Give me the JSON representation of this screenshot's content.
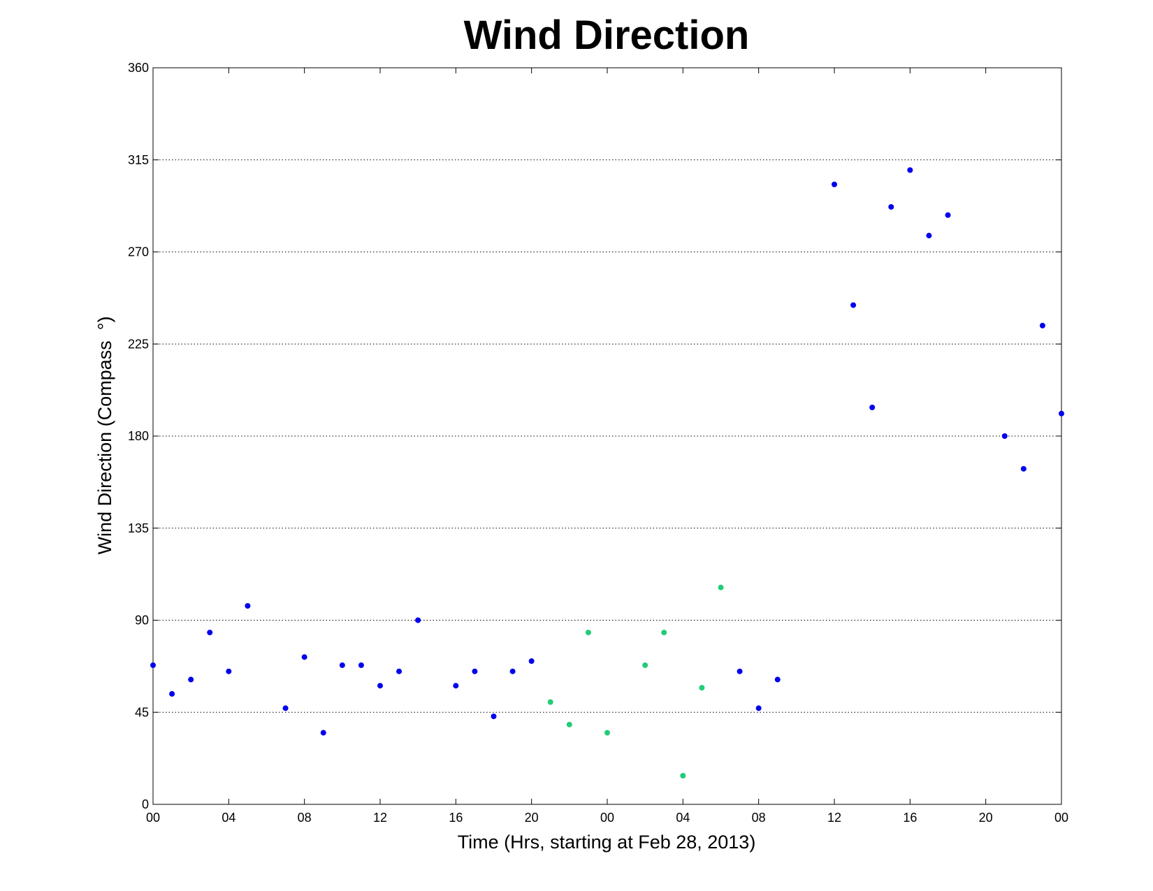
{
  "chart_data": {
    "type": "scatter",
    "title": "Wind Direction",
    "xlabel": "Time (Hrs, starting at Feb 28, 2013)",
    "ylabel": "Wind Direction (Compass  °)",
    "x_unit": "hours",
    "xlim": [
      0,
      48
    ],
    "ylim": [
      0,
      360
    ],
    "y_ticks": [
      0,
      45,
      90,
      135,
      180,
      225,
      270,
      315,
      360
    ],
    "y_tick_labels": [
      "0",
      "45",
      "90",
      "135",
      "180",
      "225",
      "270",
      "315",
      "360"
    ],
    "x_ticks": [
      0,
      4,
      8,
      12,
      16,
      20,
      24,
      28,
      32,
      36,
      40,
      44,
      48
    ],
    "x_tick_labels": [
      "00",
      "04",
      "08",
      "12",
      "16",
      "20",
      "00",
      "04",
      "08",
      "12",
      "16",
      "20",
      "00"
    ],
    "grid": "horizontal dotted",
    "series": [
      {
        "color": "#0000ee",
        "points": [
          {
            "x": 0,
            "y": 68
          },
          {
            "x": 1,
            "y": 54
          },
          {
            "x": 2,
            "y": 61
          },
          {
            "x": 3,
            "y": 84
          },
          {
            "x": 4,
            "y": 65
          },
          {
            "x": 5,
            "y": 97
          },
          {
            "x": 7,
            "y": 47
          },
          {
            "x": 8,
            "y": 72
          },
          {
            "x": 9,
            "y": 35
          },
          {
            "x": 10,
            "y": 68
          },
          {
            "x": 11,
            "y": 68
          },
          {
            "x": 12,
            "y": 58
          },
          {
            "x": 13,
            "y": 65
          },
          {
            "x": 14,
            "y": 90
          },
          {
            "x": 16,
            "y": 58
          },
          {
            "x": 17,
            "y": 65
          },
          {
            "x": 18,
            "y": 43
          },
          {
            "x": 19,
            "y": 65
          },
          {
            "x": 20,
            "y": 70
          },
          {
            "x": 31,
            "y": 65
          },
          {
            "x": 32,
            "y": 47
          },
          {
            "x": 33,
            "y": 61
          },
          {
            "x": 36,
            "y": 303
          },
          {
            "x": 37,
            "y": 244
          },
          {
            "x": 38,
            "y": 194
          },
          {
            "x": 39,
            "y": 292
          },
          {
            "x": 40,
            "y": 310
          },
          {
            "x": 41,
            "y": 278
          },
          {
            "x": 42,
            "y": 288
          },
          {
            "x": 45,
            "y": 180
          },
          {
            "x": 46,
            "y": 164
          },
          {
            "x": 47,
            "y": 234
          },
          {
            "x": 48,
            "y": 191
          }
        ]
      },
      {
        "color": "#22cc77",
        "points": [
          {
            "x": 21,
            "y": 50
          },
          {
            "x": 22,
            "y": 39
          },
          {
            "x": 23,
            "y": 84
          },
          {
            "x": 24,
            "y": 35
          },
          {
            "x": 26,
            "y": 68
          },
          {
            "x": 27,
            "y": 84
          },
          {
            "x": 28,
            "y": 14
          },
          {
            "x": 29,
            "y": 57
          },
          {
            "x": 30,
            "y": 106
          }
        ]
      }
    ]
  }
}
